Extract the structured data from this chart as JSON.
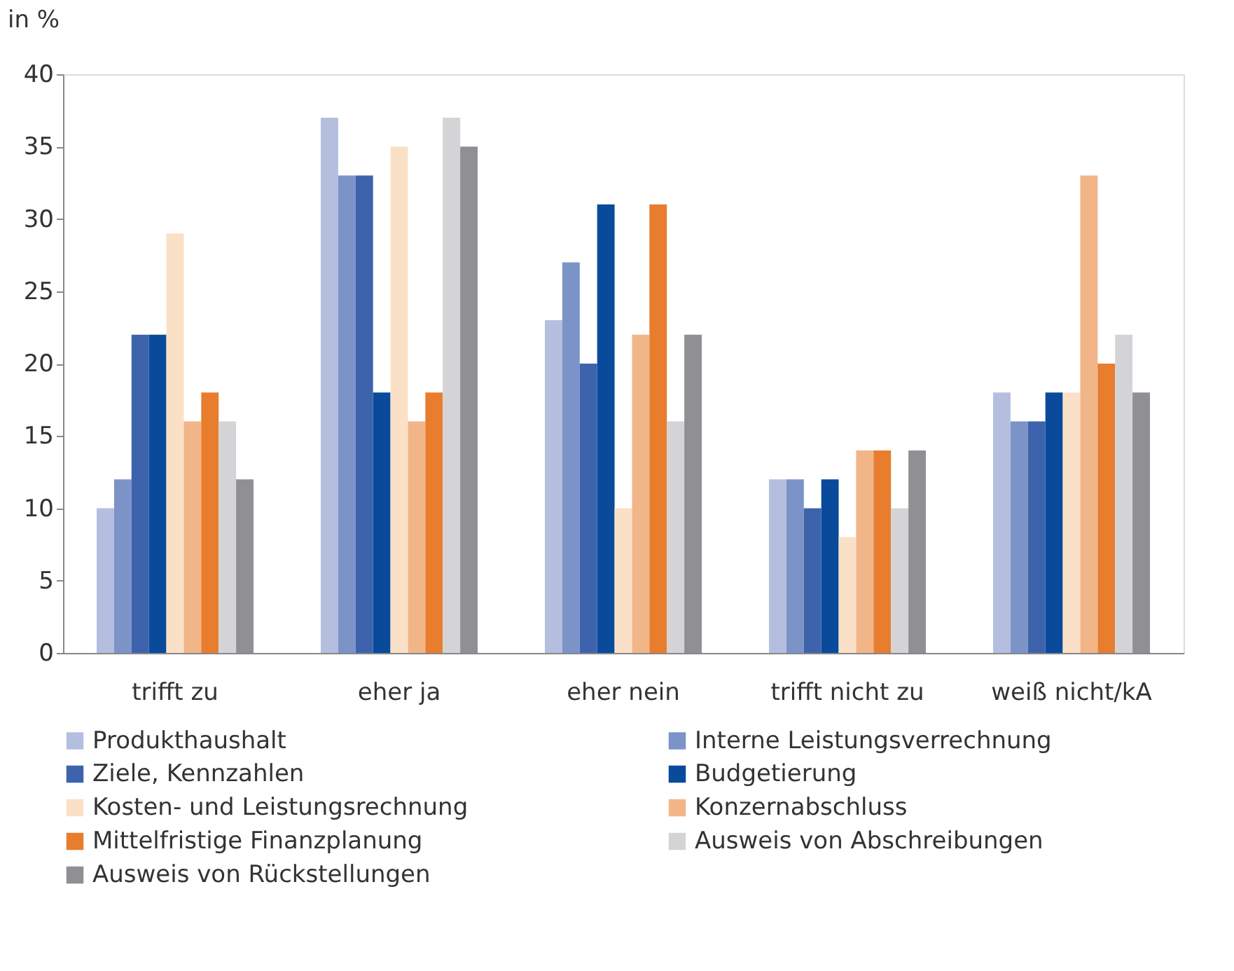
{
  "chart_data": {
    "type": "bar",
    "ylabel": "in %",
    "categories": [
      "trifft zu",
      "eher ja",
      "eher nein",
      "trifft nicht zu",
      "weiß nicht/kA"
    ],
    "ylim": [
      0,
      40
    ],
    "yticks": [
      0,
      5,
      10,
      15,
      20,
      25,
      30,
      35,
      40
    ],
    "grid": false,
    "legend": "bottom",
    "series": [
      {
        "name": "Produkthaushalt",
        "color": "#b4bfe0",
        "values": [
          10,
          37,
          23,
          12,
          18
        ]
      },
      {
        "name": "Interne Leistungsverrechnung",
        "color": "#7b93c7",
        "values": [
          12,
          33,
          27,
          12,
          16
        ]
      },
      {
        "name": "Ziele, Kennzahlen",
        "color": "#3d63ad",
        "values": [
          22,
          33,
          20,
          10,
          16
        ]
      },
      {
        "name": "Budgetierung",
        "color": "#0a4a9a",
        "values": [
          22,
          18,
          31,
          12,
          18
        ]
      },
      {
        "name": "Kosten- und Leistungsrechnung",
        "color": "#fbe0c8",
        "values": [
          29,
          35,
          10,
          8,
          18
        ]
      },
      {
        "name": "Konzernabschluss",
        "color": "#f2b588",
        "values": [
          16,
          16,
          22,
          14,
          33
        ]
      },
      {
        "name": "Mittelfristige Finanzplanung",
        "color": "#e87d2e",
        "values": [
          18,
          18,
          31,
          14,
          20
        ]
      },
      {
        "name": "Ausweis von Abschreibungen",
        "color": "#d4d4d6",
        "values": [
          16,
          37,
          16,
          10,
          22
        ]
      },
      {
        "name": "Ausweis von Rückstellungen",
        "color": "#8f8f94",
        "values": [
          12,
          35,
          22,
          14,
          18
        ]
      }
    ]
  }
}
